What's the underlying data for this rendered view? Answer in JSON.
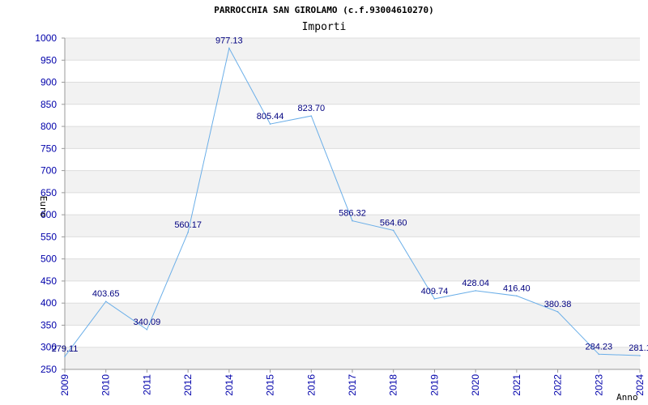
{
  "chart_data": {
    "type": "line",
    "title": "PARROCCHIA SAN GIROLAMO (c.f.93004610270)",
    "subtitle": "Importi",
    "xlabel": "Anno",
    "ylabel": "Euro",
    "x": [
      "2009",
      "2010",
      "2011",
      "2012",
      "2014",
      "2015",
      "2016",
      "2017",
      "2018",
      "2019",
      "2020",
      "2021",
      "2022",
      "2023",
      "2024"
    ],
    "series": [
      {
        "values": [
          279.11,
          403.65,
          340.09,
          560.17,
          977.13,
          805.44,
          823.7,
          586.32,
          564.6,
          409.74,
          428.04,
          416.4,
          380.38,
          284.23,
          281.1
        ],
        "labels": [
          "279.11",
          "403.65",
          "340.09",
          "560.17",
          "977.13",
          "805.44",
          "823.70",
          "586.32",
          "564.60",
          "409.74",
          "428.04",
          "416.40",
          "380.38",
          "284.23",
          "281.1"
        ],
        "color": "#6aaee8"
      }
    ],
    "yticks": [
      250,
      300,
      350,
      400,
      450,
      500,
      550,
      600,
      650,
      700,
      750,
      800,
      850,
      900,
      950,
      1000
    ],
    "ylim": [
      250,
      1000
    ],
    "grid": true,
    "band_color": "#f2f2f2",
    "grid_color": "#dddddd",
    "tick_color": "#0000aa",
    "label_color": "#000080"
  }
}
